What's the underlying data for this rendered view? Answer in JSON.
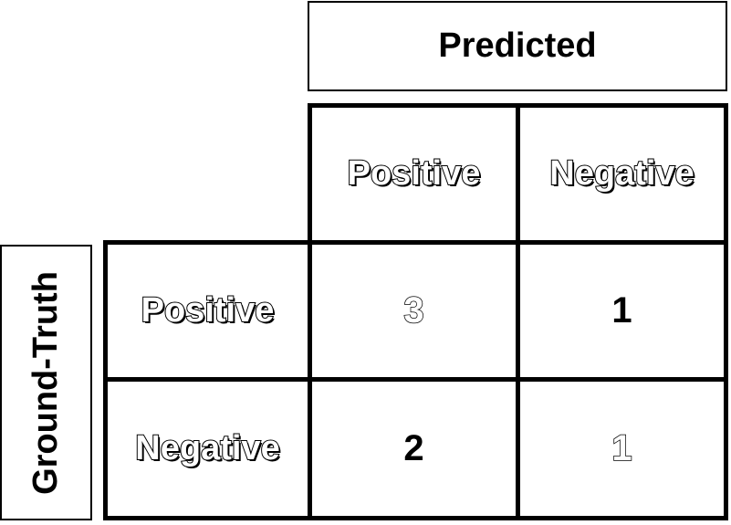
{
  "axes": {
    "predicted_label": "Predicted",
    "ground_truth_label": "Ground-Truth"
  },
  "columns": [
    "Positive",
    "Negative"
  ],
  "rows": [
    "Positive",
    "Negative"
  ],
  "matrix": [
    [
      "3",
      "1"
    ],
    [
      "2",
      "1"
    ]
  ]
}
